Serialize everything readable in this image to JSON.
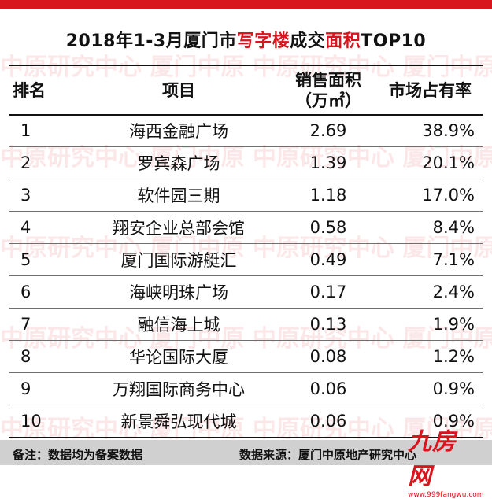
{
  "title": {
    "part1": "2018年1-3月厦门市",
    "highlight1": "写字楼",
    "part2": "成交",
    "highlight2": "面积",
    "part3": "TOP10"
  },
  "header": {
    "rank": "排名",
    "project": "项目",
    "area_line1": "销售面积",
    "area_line2": "（万㎡）",
    "share": "市场占有率"
  },
  "rows": [
    {
      "rank": "1",
      "project": "海西金融广场",
      "area": "2.69",
      "share": "38.9%"
    },
    {
      "rank": "2",
      "project": "罗宾森广场",
      "area": "1.39",
      "share": "20.1%"
    },
    {
      "rank": "3",
      "project": "软件园三期",
      "area": "1.18",
      "share": "17.0%"
    },
    {
      "rank": "4",
      "project": "翔安企业总部会馆",
      "area": "0.58",
      "share": "8.4%"
    },
    {
      "rank": "5",
      "project": "厦门国际游艇汇",
      "area": "0.49",
      "share": "7.1%"
    },
    {
      "rank": "6",
      "project": "海峡明珠广场",
      "area": "0.17",
      "share": "2.4%"
    },
    {
      "rank": "7",
      "project": "融信海上城",
      "area": "0.13",
      "share": "1.9%"
    },
    {
      "rank": "8",
      "project": "华论国际大厦",
      "area": "0.08",
      "share": "1.2%"
    },
    {
      "rank": "9",
      "project": "万翔国际商务中心",
      "area": "0.06",
      "share": "0.9%"
    },
    {
      "rank": "10",
      "project": "新景舜弘现代城",
      "area": "0.06",
      "share": "0.9%"
    }
  ],
  "footer": {
    "note": "备注：数据均为备案数据",
    "source": "数据来源：厦门中原地产研究中心"
  },
  "watermark": {
    "text": "中原研究中心  厦门中原  中原研究中心  厦门中原"
  },
  "logo": {
    "mark": "九房网",
    "url": "www.999fangwu.com"
  },
  "colors": {
    "accent": "#d8141c",
    "footer_bg": "#d0d0d0"
  }
}
